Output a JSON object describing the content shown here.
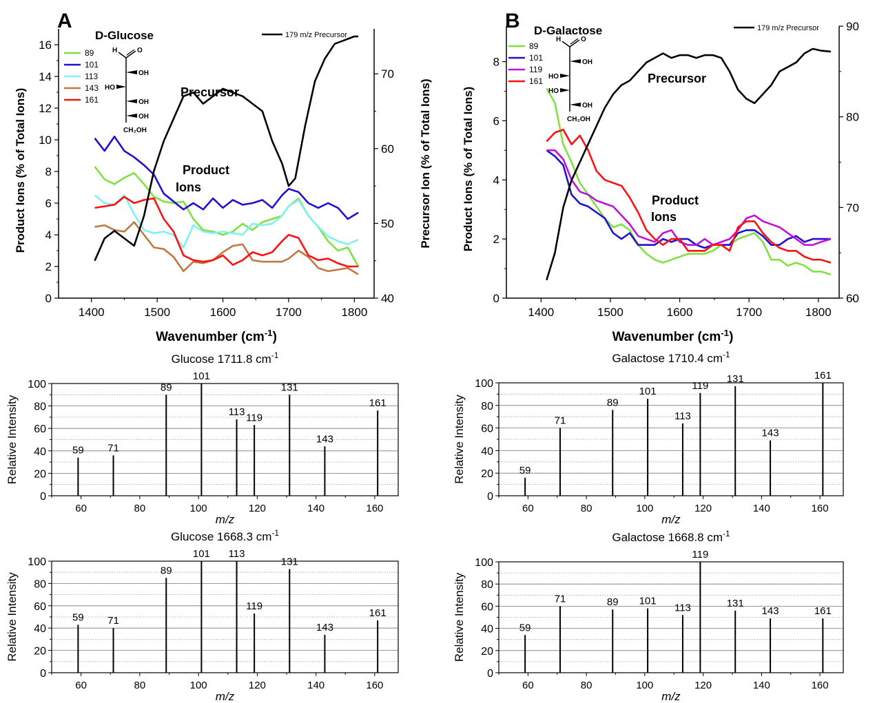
{
  "colors": {
    "89": "#80e040",
    "101": "#2010d0",
    "113": "#80f0f0",
    "119": "#c010e0",
    "143": "#c07840",
    "161": "#ff1010",
    "precursor": "#000000"
  },
  "chart_data": [
    {
      "type": "line",
      "panel_label": "A",
      "compound": "D-Glucose",
      "xlabel": "Wavenumber (cm-1)",
      "ylabel": "Product Ions (% of Total Ions)",
      "y2label": "Precursor Ion (% of Total Ions)",
      "xlim": [
        1350,
        1830
      ],
      "ylim": [
        0,
        17
      ],
      "y2lim": [
        40,
        76
      ],
      "xticks": [
        1400,
        1500,
        1600,
        1700,
        1800
      ],
      "yticks": [
        0,
        2,
        4,
        6,
        8,
        10,
        12,
        14,
        16
      ],
      "y2ticks": [
        40,
        50,
        60,
        70
      ],
      "annotations": [
        "Precursor",
        "Product",
        "Ions"
      ],
      "precursor": {
        "name": "179 m/z Precursor",
        "axis": "right",
        "x": [
          1405,
          1420,
          1435,
          1450,
          1465,
          1480,
          1495,
          1510,
          1525,
          1540,
          1555,
          1570,
          1585,
          1600,
          1615,
          1630,
          1645,
          1660,
          1675,
          1690,
          1700,
          1710,
          1725,
          1740,
          1755,
          1770,
          1785,
          1800,
          1806
        ],
        "y": [
          45,
          48,
          49,
          48,
          47,
          51,
          57,
          61,
          64,
          67,
          67.5,
          66,
          67,
          68,
          67.5,
          67,
          66,
          65,
          61,
          58,
          55,
          56,
          63,
          69,
          72,
          74,
          74.5,
          75,
          75
        ]
      },
      "series": [
        {
          "name": "89",
          "x": [
            1405,
            1420,
            1435,
            1450,
            1465,
            1480,
            1495,
            1510,
            1525,
            1540,
            1555,
            1570,
            1585,
            1600,
            1615,
            1630,
            1645,
            1660,
            1675,
            1690,
            1700,
            1715,
            1730,
            1745,
            1760,
            1775,
            1790,
            1806
          ],
          "y": [
            8.3,
            7.5,
            7.2,
            7.6,
            7.9,
            7.2,
            6.4,
            6.1,
            6.0,
            6.1,
            5.0,
            4.3,
            4.2,
            4.0,
            4.2,
            4.7,
            4.3,
            4.8,
            5.0,
            5.2,
            5.8,
            6.3,
            5.2,
            4.5,
            3.6,
            3.0,
            3.2,
            2.0
          ]
        },
        {
          "name": "101",
          "x": [
            1405,
            1420,
            1435,
            1450,
            1465,
            1480,
            1495,
            1510,
            1525,
            1540,
            1555,
            1570,
            1585,
            1600,
            1615,
            1630,
            1645,
            1660,
            1675,
            1690,
            1700,
            1715,
            1730,
            1745,
            1760,
            1775,
            1790,
            1806
          ],
          "y": [
            10.1,
            9.3,
            10.2,
            9.3,
            8.9,
            8.4,
            7.8,
            6.6,
            6.1,
            5.6,
            6.0,
            5.6,
            6.3,
            5.7,
            6.2,
            5.9,
            6.0,
            6.2,
            5.7,
            6.5,
            6.9,
            6.7,
            6.0,
            5.7,
            6.0,
            5.7,
            5.0,
            5.4
          ]
        },
        {
          "name": "113",
          "x": [
            1405,
            1420,
            1435,
            1450,
            1465,
            1480,
            1495,
            1510,
            1525,
            1540,
            1555,
            1570,
            1585,
            1600,
            1615,
            1630,
            1645,
            1660,
            1675,
            1690,
            1700,
            1715,
            1730,
            1745,
            1760,
            1775,
            1790,
            1806
          ],
          "y": [
            6.5,
            6.0,
            5.9,
            6.5,
            5.3,
            4.3,
            4.1,
            4.2,
            4.0,
            3.2,
            4.6,
            4.2,
            4.1,
            4.2,
            4.1,
            4.0,
            4.7,
            4.6,
            4.7,
            5.2,
            5.8,
            6.2,
            5.2,
            4.5,
            3.9,
            3.6,
            3.4,
            3.7
          ]
        },
        {
          "name": "143",
          "x": [
            1405,
            1420,
            1435,
            1450,
            1465,
            1480,
            1495,
            1510,
            1525,
            1540,
            1555,
            1570,
            1585,
            1600,
            1615,
            1630,
            1645,
            1660,
            1675,
            1690,
            1700,
            1715,
            1730,
            1745,
            1760,
            1775,
            1790,
            1806
          ],
          "y": [
            4.5,
            4.6,
            4.3,
            4.2,
            4.8,
            4.0,
            3.2,
            3.1,
            2.6,
            1.7,
            2.3,
            2.2,
            2.4,
            2.9,
            3.3,
            3.4,
            2.4,
            2.3,
            2.3,
            2.3,
            2.5,
            3.0,
            2.6,
            1.9,
            1.7,
            1.8,
            1.9,
            1.5
          ]
        },
        {
          "name": "161",
          "x": [
            1405,
            1420,
            1435,
            1450,
            1465,
            1480,
            1495,
            1510,
            1525,
            1540,
            1555,
            1570,
            1585,
            1600,
            1615,
            1630,
            1645,
            1660,
            1675,
            1690,
            1700,
            1715,
            1730,
            1745,
            1760,
            1775,
            1790,
            1806
          ],
          "y": [
            5.7,
            5.8,
            5.9,
            6.4,
            6.0,
            6.2,
            6.3,
            5.0,
            4.2,
            2.7,
            2.4,
            2.3,
            2.4,
            2.7,
            2.1,
            2.4,
            2.9,
            2.7,
            2.9,
            3.6,
            4.0,
            3.8,
            2.7,
            2.4,
            2.5,
            2.2,
            2.0,
            2.0
          ]
        }
      ],
      "structure": {
        "top": "H",
        "carbonyl": "O",
        "rows": [
          {
            "left": "",
            "right": "OH"
          },
          {
            "left": "HO",
            "right": ""
          },
          {
            "left": "",
            "right": "OH"
          },
          {
            "left": "",
            "right": "OH"
          }
        ],
        "bottom": "CH₂OH"
      }
    },
    {
      "type": "line",
      "panel_label": "B",
      "compound": "D-Galactose",
      "xlabel": "Wavenumber (cm-1)",
      "ylabel": "Product Ions (% of Total Ions)",
      "y2label": "Precursor Ion (% of Total Ions)",
      "xlim": [
        1350,
        1830
      ],
      "ylim": [
        0,
        9.2
      ],
      "y2lim": [
        60,
        90
      ],
      "xticks": [
        1400,
        1500,
        1600,
        1700,
        1800
      ],
      "yticks": [
        0,
        2,
        4,
        6,
        8
      ],
      "y2ticks": [
        60,
        70,
        80,
        90
      ],
      "annotations": [
        "Precursor",
        "Product",
        "Ions"
      ],
      "precursor": {
        "name": "179 m/z Precursor",
        "axis": "right",
        "x": [
          1408,
          1420,
          1432,
          1444,
          1456,
          1468,
          1480,
          1492,
          1504,
          1516,
          1528,
          1540,
          1552,
          1564,
          1576,
          1588,
          1600,
          1612,
          1624,
          1636,
          1648,
          1660,
          1672,
          1684,
          1696,
          1708,
          1720,
          1732,
          1744,
          1756,
          1768,
          1780,
          1792,
          1804,
          1818
        ],
        "y": [
          62,
          65,
          70,
          73,
          75,
          77,
          79,
          81,
          82.5,
          83.5,
          84,
          85,
          86,
          86.5,
          87,
          86.5,
          86.8,
          86.8,
          86.5,
          86.8,
          86.8,
          86.5,
          85,
          83,
          82,
          81.5,
          82.5,
          83.5,
          85,
          85.5,
          86,
          87,
          87.5,
          87.3,
          87.2
        ]
      },
      "series": [
        {
          "name": "89",
          "x": [
            1408,
            1420,
            1432,
            1444,
            1456,
            1468,
            1480,
            1492,
            1504,
            1516,
            1528,
            1540,
            1552,
            1564,
            1576,
            1588,
            1600,
            1612,
            1624,
            1636,
            1648,
            1660,
            1672,
            1684,
            1696,
            1708,
            1720,
            1732,
            1744,
            1756,
            1768,
            1780,
            1792,
            1804,
            1818
          ],
          "y": [
            7.1,
            6.6,
            5.2,
            4.6,
            3.9,
            3.5,
            3.1,
            2.7,
            2.4,
            2.5,
            2.3,
            1.8,
            1.5,
            1.3,
            1.2,
            1.3,
            1.4,
            1.5,
            1.5,
            1.5,
            1.6,
            1.8,
            1.8,
            2.0,
            2.1,
            2.2,
            1.9,
            1.3,
            1.3,
            1.1,
            1.2,
            1.1,
            0.9,
            0.9,
            0.8
          ]
        },
        {
          "name": "101",
          "x": [
            1408,
            1420,
            1432,
            1444,
            1456,
            1468,
            1480,
            1492,
            1504,
            1516,
            1528,
            1540,
            1552,
            1564,
            1576,
            1588,
            1600,
            1612,
            1624,
            1636,
            1648,
            1660,
            1672,
            1684,
            1696,
            1708,
            1720,
            1732,
            1744,
            1756,
            1768,
            1780,
            1792,
            1804,
            1818
          ],
          "y": [
            5.0,
            4.8,
            4.5,
            3.5,
            3.2,
            3.1,
            2.9,
            2.7,
            2.2,
            2.0,
            2.2,
            1.8,
            1.8,
            1.8,
            2.0,
            1.9,
            2.0,
            2.0,
            1.8,
            1.7,
            1.8,
            1.8,
            1.8,
            2.2,
            2.3,
            2.3,
            2.1,
            1.8,
            1.8,
            2.0,
            2.1,
            1.9,
            2.0,
            2.0,
            2.0
          ]
        },
        {
          "name": "119",
          "x": [
            1408,
            1420,
            1432,
            1444,
            1456,
            1468,
            1480,
            1492,
            1504,
            1516,
            1528,
            1540,
            1552,
            1564,
            1576,
            1588,
            1600,
            1612,
            1624,
            1636,
            1648,
            1660,
            1672,
            1684,
            1696,
            1708,
            1720,
            1732,
            1744,
            1756,
            1768,
            1780,
            1792,
            1804,
            1818
          ],
          "y": [
            5.0,
            5.0,
            4.7,
            4.0,
            3.6,
            3.5,
            3.3,
            3.2,
            3.1,
            2.8,
            2.5,
            2.1,
            2.0,
            1.9,
            2.2,
            2.3,
            1.9,
            1.8,
            1.8,
            2.0,
            1.8,
            1.9,
            2.0,
            2.3,
            2.7,
            2.8,
            2.6,
            2.5,
            2.4,
            2.2,
            2.0,
            1.8,
            1.8,
            1.9,
            2.0
          ]
        },
        {
          "name": "161",
          "x": [
            1408,
            1420,
            1432,
            1444,
            1456,
            1468,
            1480,
            1492,
            1504,
            1516,
            1528,
            1540,
            1552,
            1564,
            1576,
            1588,
            1600,
            1612,
            1624,
            1636,
            1648,
            1660,
            1672,
            1684,
            1696,
            1708,
            1720,
            1732,
            1744,
            1756,
            1768,
            1780,
            1792,
            1804,
            1818
          ],
          "y": [
            5.3,
            5.6,
            5.7,
            5.2,
            5.5,
            5.0,
            4.3,
            4.0,
            3.9,
            3.8,
            3.4,
            2.9,
            2.3,
            2.0,
            1.8,
            2.0,
            2.0,
            1.6,
            1.6,
            1.6,
            1.8,
            1.8,
            1.6,
            2.4,
            2.6,
            2.6,
            2.2,
            1.9,
            1.7,
            1.6,
            1.6,
            1.4,
            1.3,
            1.3,
            1.2
          ]
        }
      ],
      "structure": {
        "top": "H",
        "carbonyl": "O",
        "rows": [
          {
            "left": "",
            "right": "OH"
          },
          {
            "left": "HO",
            "right": ""
          },
          {
            "left": "HO",
            "right": ""
          },
          {
            "left": "",
            "right": "OH"
          }
        ],
        "bottom": "CH₂OH"
      }
    },
    {
      "type": "bar",
      "title": "Glucose 1711.8 cm-1",
      "xlabel": "m/z",
      "ylabel": "Relative Intensity",
      "xlim": [
        50,
        168
      ],
      "ylim": [
        0,
        100
      ],
      "xticks": [
        60,
        80,
        100,
        120,
        140,
        160
      ],
      "yticks": [
        0,
        20,
        40,
        60,
        80,
        100
      ],
      "categories": [
        59,
        71,
        89,
        101,
        113,
        119,
        131,
        143,
        161
      ],
      "values": [
        34,
        36,
        90,
        100,
        68,
        63,
        90,
        44,
        76
      ]
    },
    {
      "type": "bar",
      "title": "Galactose 1710.4 cm-1",
      "xlabel": "m/z",
      "ylabel": "Relative Intensity",
      "xlim": [
        50,
        168
      ],
      "ylim": [
        0,
        100
      ],
      "xticks": [
        60,
        80,
        100,
        120,
        140,
        160
      ],
      "yticks": [
        0,
        20,
        40,
        60,
        80,
        100
      ],
      "categories": [
        59,
        71,
        89,
        101,
        113,
        119,
        131,
        143,
        161
      ],
      "values": [
        16,
        60,
        76,
        86,
        64,
        91,
        97,
        49,
        100
      ]
    },
    {
      "type": "bar",
      "title": "Glucose 1668.3 cm-1",
      "xlabel": "m/z",
      "ylabel": "Relative Intensity",
      "xlim": [
        50,
        168
      ],
      "ylim": [
        0,
        100
      ],
      "xticks": [
        60,
        80,
        100,
        120,
        140,
        160
      ],
      "yticks": [
        0,
        20,
        40,
        60,
        80,
        100
      ],
      "categories": [
        59,
        71,
        89,
        101,
        113,
        119,
        131,
        143,
        161
      ],
      "values": [
        43,
        40,
        85,
        100,
        100,
        53,
        93,
        34,
        47
      ]
    },
    {
      "type": "bar",
      "title": "Galactose 1668.8 cm-1",
      "xlabel": "m/z",
      "ylabel": "Relative Intensity",
      "xlim": [
        50,
        168
      ],
      "ylim": [
        0,
        100
      ],
      "xticks": [
        60,
        80,
        100,
        120,
        140,
        160
      ],
      "yticks": [
        0,
        20,
        40,
        60,
        80,
        100
      ],
      "categories": [
        59,
        71,
        89,
        101,
        113,
        119,
        131,
        143,
        161
      ],
      "values": [
        34,
        60,
        57,
        58,
        52,
        100,
        56,
        49,
        49
      ]
    }
  ]
}
